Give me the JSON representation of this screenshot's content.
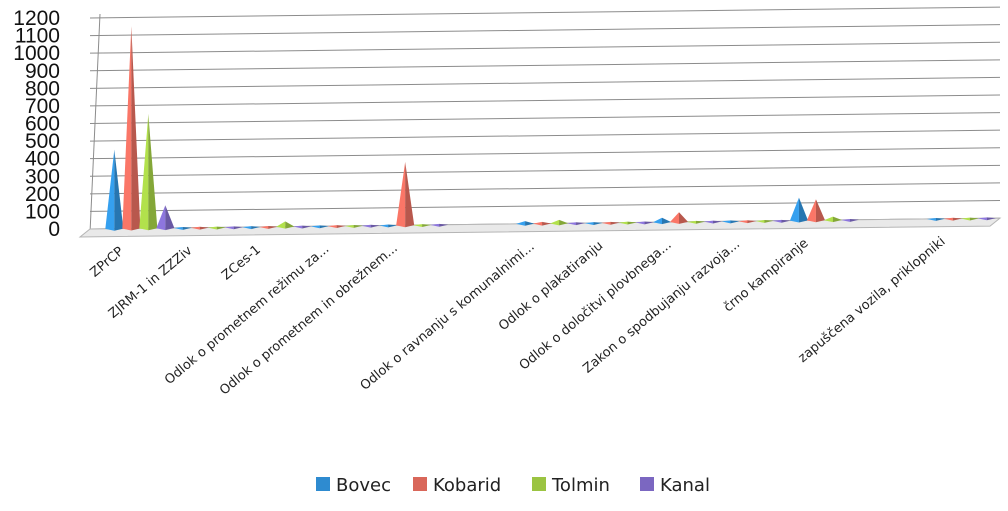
{
  "chart_data": {
    "type": "area",
    "categories": [
      "ZPrCP",
      "ZJRM-1 in ZZZiv",
      "ZCes-1",
      "Odlok o prometnem režimu za...",
      "Odlok o prometnem in obrežnem...",
      "",
      "Odlok o ravnanju s komunalnimi...",
      "Odlok o plakatiranju",
      "Odlok o določitvi plovbnega...",
      "Zakon o spodbujanju razvoja...",
      "črno kampiranje",
      "",
      "zapuščena vozila, priklopniki"
    ],
    "series": [
      {
        "name": "Bovec",
        "color": "#2e8bd0",
        "values": [
          450,
          5,
          5,
          5,
          5,
          0,
          15,
          5,
          25,
          5,
          130,
          0,
          5
        ]
      },
      {
        "name": "Kobarid",
        "color": "#d9675a",
        "values": [
          1150,
          5,
          5,
          5,
          360,
          0,
          10,
          5,
          55,
          5,
          120,
          0,
          5
        ]
      },
      {
        "name": "Tolmin",
        "color": "#9bc442",
        "values": [
          650,
          5,
          30,
          5,
          5,
          0,
          20,
          5,
          5,
          5,
          20,
          0,
          5
        ]
      },
      {
        "name": "Kanal",
        "color": "#7b67c1",
        "values": [
          130,
          5,
          5,
          5,
          5,
          0,
          5,
          5,
          5,
          5,
          5,
          0,
          5
        ]
      }
    ],
    "yticks": [
      0,
      100,
      200,
      300,
      400,
      500,
      600,
      700,
      800,
      900,
      1000,
      1100,
      1200
    ],
    "ylim": [
      0,
      1200
    ],
    "grid": true,
    "legend_position": "bottom"
  }
}
